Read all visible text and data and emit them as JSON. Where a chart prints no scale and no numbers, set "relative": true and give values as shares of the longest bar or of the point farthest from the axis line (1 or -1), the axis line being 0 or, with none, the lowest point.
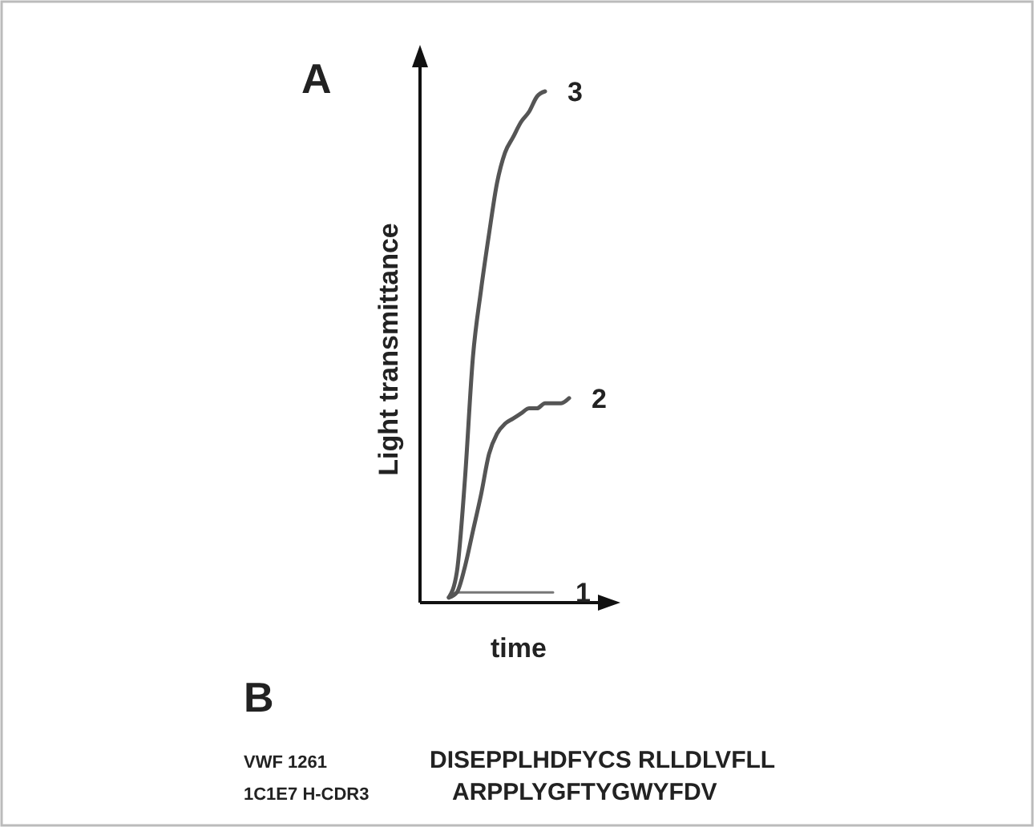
{
  "chart_data": {
    "type": "line",
    "relative": true,
    "xlabel": "time",
    "ylabel": "Light transmittance",
    "categories": [
      null,
      null,
      null,
      null,
      null,
      null,
      null,
      null,
      null,
      null,
      null,
      null,
      null,
      null,
      null,
      null
    ],
    "series": [
      {
        "name": "1",
        "color": "#777777",
        "values": [
          0.01,
          0.02,
          0.02,
          0.02,
          0.02,
          0.02,
          0.02,
          0.02,
          0.02,
          0.02,
          0.02,
          0.02,
          0.02,
          0.02,
          null,
          null
        ]
      },
      {
        "name": "2",
        "color": "#555555",
        "values": [
          0.01,
          0.02,
          0.07,
          0.14,
          0.21,
          0.29,
          0.33,
          0.35,
          0.36,
          0.37,
          0.38,
          0.38,
          0.39,
          0.39,
          0.39,
          0.4
        ]
      },
      {
        "name": "3",
        "color": "#555555",
        "values": [
          0.01,
          0.06,
          0.24,
          0.48,
          0.61,
          0.72,
          0.82,
          0.88,
          0.91,
          0.94,
          0.96,
          0.99,
          1,
          null,
          null,
          null
        ]
      }
    ],
    "annotations": [
      "A",
      "B",
      "VWF 1261",
      "DISEPPLHDFYCS RLLDLVFLL",
      "1C1E7 H-CDR3",
      "ARPPLYGFTYGWYFDV"
    ]
  }
}
